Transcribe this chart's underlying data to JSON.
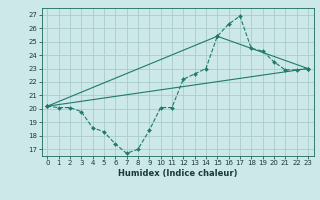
{
  "title": "",
  "xlabel": "Humidex (Indice chaleur)",
  "background_color": "#cce8e8",
  "grid_color": "#aacccc",
  "line_color": "#1e7a6a",
  "xlim": [
    -0.5,
    23.5
  ],
  "ylim": [
    16.5,
    27.5
  ],
  "xticks": [
    0,
    1,
    2,
    3,
    4,
    5,
    6,
    7,
    8,
    9,
    10,
    11,
    12,
    13,
    14,
    15,
    16,
    17,
    18,
    19,
    20,
    21,
    22,
    23
  ],
  "yticks": [
    17,
    18,
    19,
    20,
    21,
    22,
    23,
    24,
    25,
    26,
    27
  ],
  "line1_x": [
    0,
    1,
    2,
    3,
    4,
    5,
    6,
    7,
    8,
    9,
    10,
    11,
    12,
    13,
    14,
    15,
    16,
    17,
    18,
    19,
    20,
    21,
    22,
    23
  ],
  "line1_y": [
    20.2,
    20.1,
    20.1,
    19.8,
    18.6,
    18.3,
    17.4,
    16.7,
    17.0,
    18.4,
    20.1,
    20.1,
    22.2,
    22.6,
    23.0,
    25.4,
    26.3,
    26.9,
    24.5,
    24.3,
    23.5,
    22.9,
    22.9,
    23.0
  ],
  "line2_x": [
    0,
    15,
    23
  ],
  "line2_y": [
    20.2,
    25.4,
    23.0
  ],
  "line3_x": [
    0,
    23
  ],
  "line3_y": [
    20.2,
    23.0
  ],
  "tick_fontsize": 5.0,
  "xlabel_fontsize": 6.0
}
